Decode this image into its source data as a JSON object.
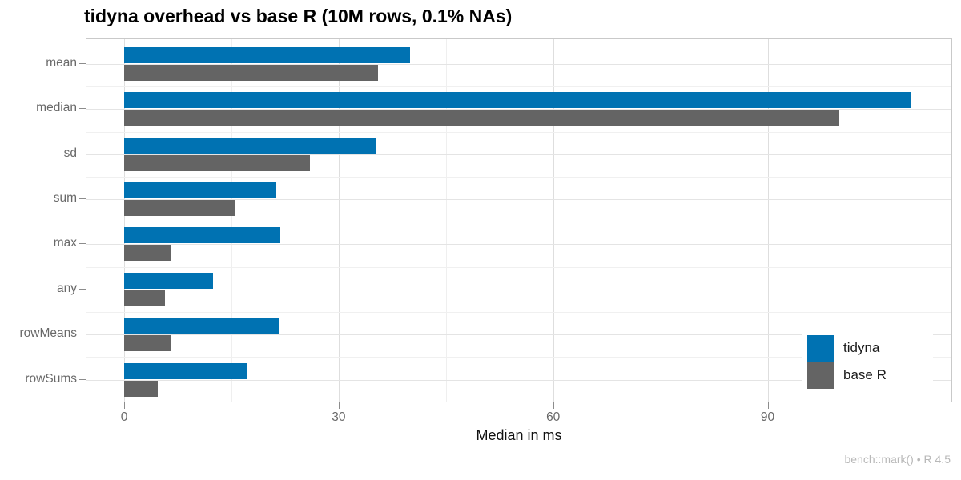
{
  "chart_data": {
    "type": "bar",
    "orientation": "horizontal",
    "title": "tidyna overhead vs base R (10M rows, 0.1% NAs)",
    "xlabel": "Median in ms",
    "caption": "bench::mark() • R 4.5",
    "categories": [
      "mean",
      "median",
      "sd",
      "sum",
      "max",
      "any",
      "rowMeans",
      "rowSums"
    ],
    "series": [
      {
        "name": "tidyna",
        "color": "#0072B2",
        "values": [
          40,
          110,
          35.3,
          21.3,
          21.8,
          12.4,
          21.7,
          17.2
        ]
      },
      {
        "name": "base R",
        "color": "#646464",
        "values": [
          35.5,
          100,
          26,
          15.6,
          6.5,
          5.7,
          6.5,
          4.7
        ]
      }
    ],
    "xlim": [
      0,
      115.7
    ],
    "x_major_ticks": [
      0,
      30,
      60,
      90
    ],
    "x_minor_ticks": [
      15,
      45,
      75,
      105
    ],
    "grid": "major+minor",
    "legend_position": "inside right"
  }
}
